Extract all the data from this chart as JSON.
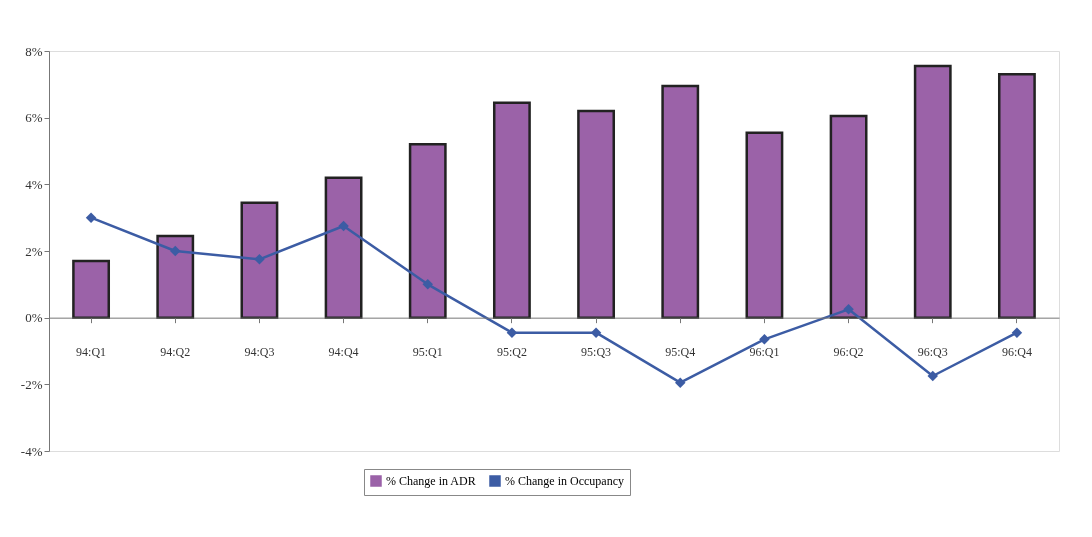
{
  "chart_data": {
    "type": "bar",
    "categories": [
      "94:Q1",
      "94:Q2",
      "94:Q3",
      "94:Q4",
      "95:Q1",
      "95:Q2",
      "95:Q3",
      "95:Q4",
      "96:Q1",
      "96:Q2",
      "96:Q3",
      "96:Q4"
    ],
    "series": [
      {
        "name": "% Change in ADR",
        "color": "#9b62a8",
        "values": [
          1.7,
          2.45,
          3.45,
          4.2,
          5.2,
          6.45,
          6.2,
          6.95,
          5.55,
          6.05,
          7.55,
          7.3
        ]
      },
      {
        "name": "% Change in Occupancy",
        "type": "line",
        "color": "#3c5ca4",
        "marker": "diamond",
        "values": [
          3.0,
          2.0,
          1.75,
          2.75,
          1.0,
          -0.45,
          -0.45,
          -1.95,
          -0.65,
          0.25,
          -1.75,
          -0.45
        ]
      }
    ],
    "ylim": [
      -4,
      8
    ],
    "yticks": [
      {
        "value": -4,
        "label": "-4%"
      },
      {
        "value": -2,
        "label": "-2%"
      },
      {
        "value": 0,
        "label": "0%"
      },
      {
        "value": 2,
        "label": "2%"
      },
      {
        "value": 4,
        "label": "4%"
      },
      {
        "value": 6,
        "label": "6%"
      },
      {
        "value": 8,
        "label": "8%"
      }
    ],
    "grid": false,
    "legend": "bottom"
  }
}
